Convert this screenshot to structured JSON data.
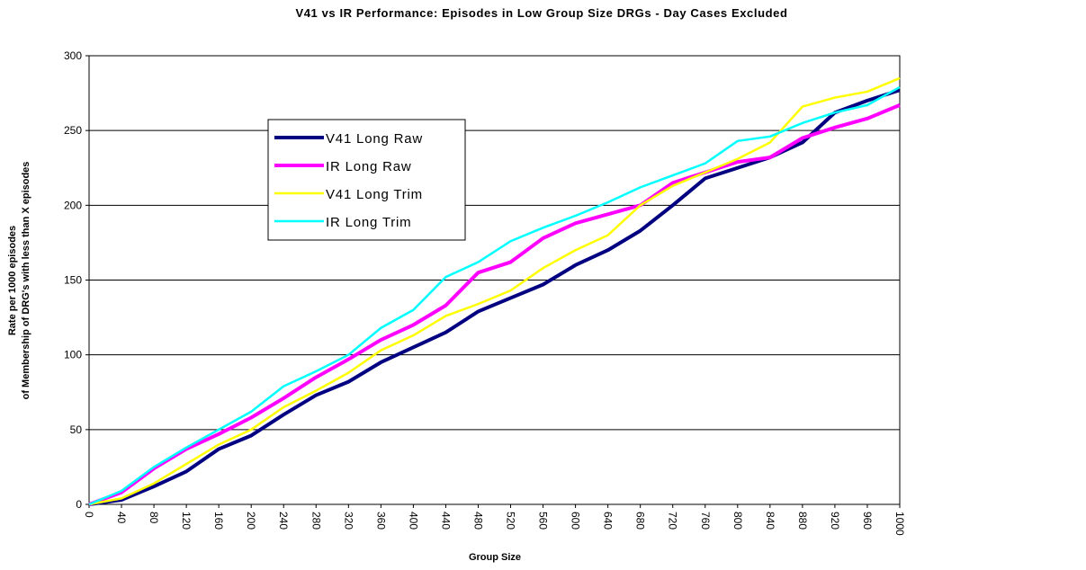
{
  "chart_data": {
    "type": "line",
    "title": "V41 vs IR Performance: Episodes in Low Group Size DRGs - Day Cases Excluded",
    "x_label": "Group Size",
    "y_label": [
      "Rate per 1000 episodes",
      "of Membership of DRG's with less than X episodes"
    ],
    "x": [
      0,
      40,
      80,
      120,
      160,
      200,
      240,
      280,
      320,
      360,
      400,
      440,
      480,
      520,
      560,
      600,
      640,
      680,
      720,
      760,
      800,
      840,
      880,
      920,
      960,
      1000
    ],
    "series": [
      {
        "name": "V41 Long Raw",
        "color": "#000080",
        "values": [
          0,
          3,
          12,
          22,
          37,
          46,
          60,
          73,
          82,
          95,
          105,
          115,
          129,
          138,
          147,
          160,
          170,
          183,
          200,
          218,
          225,
          232,
          242,
          262,
          270,
          277
        ]
      },
      {
        "name": "IR Long Raw",
        "color": "#ff00ff",
        "values": [
          0,
          8,
          24,
          37,
          47,
          58,
          71,
          85,
          97,
          110,
          120,
          133,
          155,
          162,
          178,
          188,
          194,
          200,
          215,
          222,
          229,
          232,
          245,
          252,
          258,
          267
        ]
      },
      {
        "name": "V41 Long Trim",
        "color": "#ffff00",
        "values": [
          0,
          4,
          14,
          27,
          40,
          50,
          65,
          76,
          88,
          103,
          113,
          126,
          134,
          143,
          158,
          170,
          180,
          200,
          213,
          222,
          231,
          242,
          266,
          272,
          276,
          285
        ]
      },
      {
        "name": "IR Long Trim",
        "color": "#00ffff",
        "values": [
          0,
          9,
          25,
          38,
          50,
          62,
          79,
          89,
          100,
          118,
          130,
          152,
          162,
          176,
          185,
          193,
          202,
          212,
          220,
          228,
          243,
          246,
          255,
          262,
          267,
          279
        ]
      }
    ],
    "xlim": [
      0,
      1000
    ],
    "xticks": [
      0,
      40,
      80,
      120,
      160,
      200,
      240,
      280,
      320,
      360,
      400,
      440,
      480,
      520,
      560,
      600,
      640,
      680,
      720,
      760,
      800,
      840,
      880,
      920,
      960,
      1000
    ],
    "ylim": [
      0,
      300
    ],
    "yticks": [
      0,
      50,
      100,
      150,
      200,
      250,
      300
    ],
    "grid": true,
    "legend": "upper left"
  }
}
